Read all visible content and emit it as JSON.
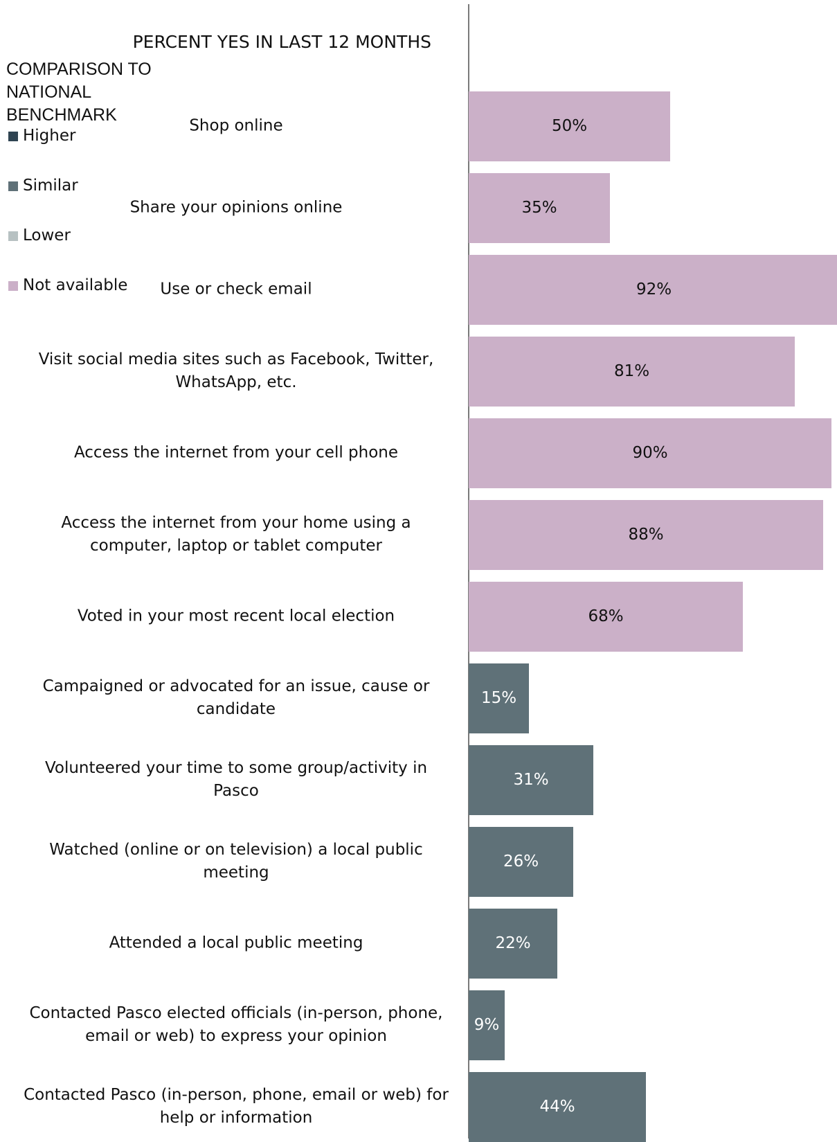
{
  "chart_data": {
    "type": "bar",
    "orientation": "horizontal",
    "title": "PERCENT YES IN LAST 12 MONTHS",
    "xlim": [
      0,
      100
    ],
    "grid": false,
    "legend_placement": "left",
    "legend": {
      "title": "COMPARISON TO NATIONAL BENCHMARK",
      "items": [
        {
          "label": "Higher",
          "color": "#2f4452"
        },
        {
          "label": "Similar",
          "color": "#5f7178"
        },
        {
          "label": "Lower",
          "color": "#b7c1c2"
        },
        {
          "label": "Not available",
          "color": "#cbb0c8"
        }
      ]
    },
    "categories": [
      "Shop online",
      "Share your opinions online",
      "Use or check email",
      "Visit social media sites such as Facebook, Twitter, WhatsApp, etc.",
      "Access the internet from your cell phone",
      "Access the internet from your home using a computer, laptop or tablet computer",
      "Voted in your most recent local election",
      "Campaigned or advocated for an issue, cause or candidate",
      "Volunteered your time to some group/activity in Pasco",
      "Watched (online or on television) a local public meeting",
      "Attended a local public meeting",
      "Contacted Pasco elected officials (in-person, phone, email or web) to express your opinion",
      "Contacted Pasco (in-person, phone, email or web) for help or information"
    ],
    "values": [
      50,
      35,
      92,
      81,
      90,
      88,
      68,
      15,
      31,
      26,
      22,
      9,
      44
    ],
    "value_labels": [
      "50%",
      "35%",
      "92%",
      "81%",
      "90%",
      "88%",
      "68%",
      "15%",
      "31%",
      "26%",
      "22%",
      "9%",
      "44%"
    ],
    "comparison": [
      "Not available",
      "Not available",
      "Not available",
      "Not available",
      "Not available",
      "Not available",
      "Not available",
      "Similar",
      "Similar",
      "Similar",
      "Similar",
      "Similar",
      "Similar"
    ]
  }
}
